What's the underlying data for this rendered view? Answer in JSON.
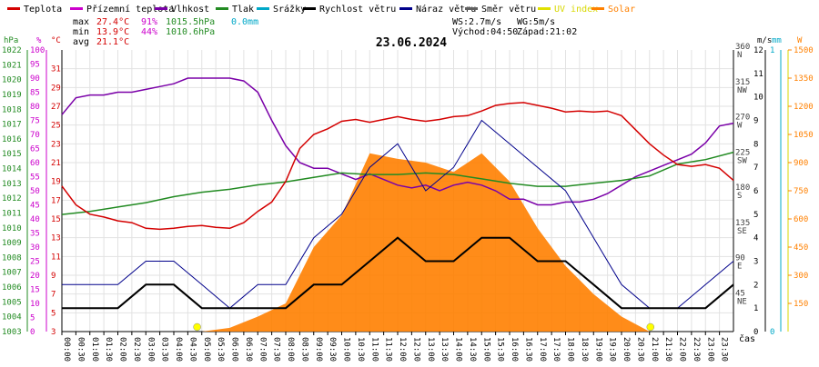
{
  "chart_data": {
    "type": "line",
    "title": "23.06.2024",
    "xlabel": "čas",
    "legend": [
      {
        "name": "Teplota",
        "color": "#d40000"
      },
      {
        "name": "Přízemní teplota",
        "color": "#cc00cc"
      },
      {
        "name": "Vlhkost",
        "color": "#7a00a8"
      },
      {
        "name": "Tlak",
        "color": "#228b22"
      },
      {
        "name": "Srážky",
        "color": "#00a8c8"
      },
      {
        "name": "Rychlost větru",
        "color": "#000000"
      },
      {
        "name": "Náraz větru",
        "color": "#00008b"
      },
      {
        "name": "Směr větru",
        "color": "#606060"
      },
      {
        "name": "UV index",
        "color": "#e0e000"
      },
      {
        "name": "Solar",
        "color": "#ff8000"
      }
    ],
    "stats": {
      "max_label": "max",
      "max_temp": "27.4°C",
      "max_hum": "91%",
      "max_press": "1015.5hPa",
      "rain": "0.0mm",
      "min_label": "min",
      "min_temp": "13.9°C",
      "min_hum": "44%",
      "min_press": "1010.6hPa",
      "avg_label": "avg",
      "avg_temp": "21.1°C",
      "ws": "WS:2.7m/s",
      "wg": "WG:5m/s",
      "sunrise": "Východ:04:50",
      "sunset": "Západ:21:02"
    },
    "x_ticks": [
      "00:00",
      "00:30",
      "01:00",
      "01:30",
      "02:00",
      "02:30",
      "03:00",
      "03:30",
      "04:00",
      "04:30",
      "05:00",
      "05:30",
      "06:00",
      "06:30",
      "07:00",
      "07:30",
      "08:00",
      "08:30",
      "09:00",
      "09:30",
      "10:00",
      "10:30",
      "11:00",
      "11:30",
      "12:00",
      "12:30",
      "13:00",
      "13:30",
      "14:00",
      "14:30",
      "15:00",
      "15:30",
      "16:00",
      "16:30",
      "17:00",
      "17:30",
      "18:00",
      "18:30",
      "19:00",
      "19:30",
      "20:00",
      "20:30",
      "21:00",
      "21:30",
      "22:00",
      "22:30",
      "23:00",
      "23:30"
    ],
    "axes": {
      "pressure": {
        "unit": "hPa",
        "range": [
          1003,
          1022
        ],
        "ticks": [
          1003,
          1004,
          1005,
          1006,
          1007,
          1008,
          1009,
          1010,
          1011,
          1012,
          1013,
          1014,
          1015,
          1016,
          1017,
          1018,
          1019,
          1020,
          1021,
          1022
        ],
        "color": "#228b22"
      },
      "humidity": {
        "unit": "%",
        "range": [
          0,
          100
        ],
        "ticks": [
          0,
          5,
          10,
          15,
          20,
          25,
          30,
          35,
          40,
          45,
          50,
          55,
          60,
          65,
          70,
          75,
          80,
          85,
          90,
          95,
          100
        ],
        "color": "#cc00cc"
      },
      "temperature": {
        "unit": "°C",
        "range": [
          3,
          33
        ],
        "ticks": [
          3,
          5,
          7,
          9,
          11,
          13,
          15,
          17,
          19,
          21,
          23,
          25,
          27,
          29,
          31
        ],
        "color": "#d40000"
      },
      "direction": {
        "range": [
          0,
          360
        ],
        "ticks": [
          {
            "v": 45,
            "l": "45",
            "d": "NE"
          },
          {
            "v": 90,
            "l": "90",
            "d": "E"
          },
          {
            "v": 135,
            "l": "135",
            "d": "SE"
          },
          {
            "v": 180,
            "l": "180",
            "d": "S"
          },
          {
            "v": 225,
            "l": "225",
            "d": "SW"
          },
          {
            "v": 270,
            "l": "270",
            "d": "W"
          },
          {
            "v": 315,
            "l": "315",
            "d": "NW"
          },
          {
            "v": 360,
            "l": "360",
            "d": "N"
          }
        ],
        "color": "#404040"
      },
      "wind": {
        "unit": "m/s",
        "range": [
          0,
          12
        ],
        "ticks": [
          0,
          1,
          2,
          3,
          4,
          5,
          6,
          7,
          8,
          9,
          10,
          11,
          12
        ],
        "color": "#000000"
      },
      "rain": {
        "unit": "mm",
        "range": [
          0,
          1
        ],
        "ticks": [
          0,
          1
        ],
        "color": "#00a8c8"
      },
      "uv": {
        "unit": "",
        "range": [
          0,
          12
        ],
        "color": "#d8d800"
      },
      "solar": {
        "unit": "W",
        "range": [
          0,
          1500
        ],
        "ticks": [
          150,
          300,
          450,
          600,
          750,
          900,
          1050,
          1200,
          1350,
          1500
        ],
        "color": "#ff8000"
      }
    },
    "series": [
      {
        "name": "Teplota",
        "unit": "°C",
        "x": [
          0,
          0.5,
          1,
          1.5,
          2,
          2.5,
          3,
          3.5,
          4,
          4.5,
          5,
          5.5,
          6,
          6.5,
          7,
          7.5,
          8,
          8.5,
          9,
          9.5,
          10,
          10.5,
          11,
          11.5,
          12,
          12.5,
          13,
          13.5,
          14,
          14.5,
          15,
          15.5,
          16,
          16.5,
          17,
          17.5,
          18,
          18.5,
          19,
          19.5,
          20,
          20.5,
          21,
          21.5,
          22,
          22.5,
          23,
          23.5,
          24
        ],
        "values": [
          18.5,
          16.5,
          15.5,
          15.2,
          14.8,
          14.6,
          14.0,
          13.9,
          14.0,
          14.2,
          14.3,
          14.1,
          14.0,
          14.6,
          15.8,
          16.8,
          19.0,
          22.5,
          24.0,
          24.6,
          25.4,
          25.6,
          25.3,
          25.6,
          25.9,
          25.6,
          25.4,
          25.6,
          25.9,
          26.0,
          26.5,
          27.1,
          27.3,
          27.4,
          27.1,
          26.8,
          26.4,
          26.5,
          26.4,
          26.5,
          26.0,
          24.5,
          23.0,
          21.8,
          20.8,
          20.6,
          20.8,
          20.4,
          19.1
        ]
      },
      {
        "name": "Vlhkost",
        "unit": "%",
        "x": [
          0,
          0.5,
          1,
          1.5,
          2,
          2.5,
          3,
          3.5,
          4,
          4.5,
          5,
          5.5,
          6,
          6.5,
          7,
          7.5,
          8,
          8.5,
          9,
          9.5,
          10,
          10.5,
          11,
          11.5,
          12,
          12.5,
          13,
          13.5,
          14,
          14.5,
          15,
          15.5,
          16,
          16.5,
          17,
          17.5,
          18,
          18.5,
          19,
          19.5,
          20,
          20.5,
          21,
          21.5,
          22,
          22.5,
          23,
          23.5,
          24
        ],
        "values": [
          77,
          83,
          84,
          84,
          85,
          85,
          86,
          87,
          88,
          90,
          90,
          90,
          90,
          89,
          85,
          75,
          66,
          60,
          58,
          58,
          56,
          54,
          56,
          54,
          52,
          51,
          52,
          50,
          52,
          53,
          52,
          50,
          47,
          47,
          45,
          45,
          46,
          46,
          47,
          49,
          52,
          55,
          57,
          59,
          61,
          63,
          67,
          73,
          74
        ]
      },
      {
        "name": "Tlak",
        "unit": "hPa",
        "x": [
          0,
          1,
          2,
          3,
          4,
          5,
          6,
          7,
          8,
          9,
          10,
          11,
          12,
          13,
          14,
          15,
          16,
          17,
          18,
          19,
          20,
          21,
          22,
          23,
          24
        ],
        "values": [
          1010.9,
          1011.1,
          1011.4,
          1011.7,
          1012.1,
          1012.4,
          1012.6,
          1012.9,
          1013.1,
          1013.4,
          1013.7,
          1013.6,
          1013.6,
          1013.7,
          1013.6,
          1013.3,
          1013.0,
          1012.8,
          1012.8,
          1013.0,
          1013.2,
          1013.5,
          1014.3,
          1014.6,
          1015.1
        ]
      },
      {
        "name": "Rychlost větru",
        "unit": "m/s",
        "x": [
          0,
          1,
          2,
          3,
          4,
          5,
          6,
          7,
          8,
          9,
          10,
          11,
          12,
          13,
          14,
          15,
          16,
          17,
          18,
          19,
          20,
          21,
          22,
          23,
          24
        ],
        "values": [
          1,
          1,
          1,
          2,
          2,
          1,
          1,
          1,
          1,
          2,
          2,
          3,
          4,
          3,
          3,
          4,
          4,
          3,
          3,
          2,
          1,
          1,
          1,
          1,
          2
        ]
      },
      {
        "name": "Náraz větru",
        "unit": "m/s",
        "x": [
          0,
          1,
          2,
          3,
          4,
          5,
          6,
          7,
          8,
          9,
          10,
          11,
          12,
          13,
          14,
          15,
          16,
          17,
          18,
          19,
          20,
          21,
          22,
          23,
          24
        ],
        "values": [
          2,
          2,
          2,
          3,
          3,
          2,
          1,
          2,
          2,
          4,
          5,
          7,
          8,
          6,
          7,
          9,
          8,
          7,
          6,
          4,
          2,
          1,
          1,
          2,
          3
        ]
      },
      {
        "name": "Solar",
        "unit": "W/m²",
        "x": [
          5,
          6,
          7,
          8,
          9,
          10,
          11,
          12,
          13,
          14,
          15,
          16,
          17,
          18,
          19,
          20,
          21
        ],
        "values": [
          0,
          20,
          80,
          150,
          450,
          620,
          950,
          920,
          900,
          850,
          950,
          800,
          550,
          350,
          200,
          80,
          0
        ]
      }
    ]
  }
}
